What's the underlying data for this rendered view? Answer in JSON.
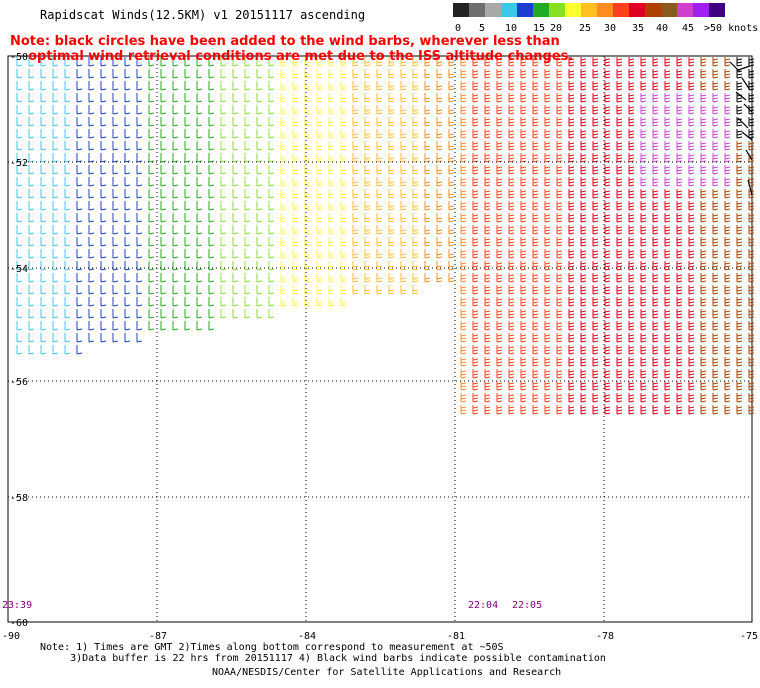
{
  "title": "Rapidscat Winds(12.5KM) v1 20151117 ascending",
  "note_lines": [
    "Note: black circles have been added to the wind barbs, wherever less than",
    "    optimal wind retrieval conditions are met due to the ISS altitude changes."
  ],
  "legend": {
    "colors": [
      "#222222",
      "#6e6e6e",
      "#a8a8a8",
      "#3ac8e8",
      "#1a3fd0",
      "#22aa22",
      "#88e020",
      "#ffff30",
      "#ffc020",
      "#ff8c20",
      "#ff4020",
      "#e00020",
      "#b04000",
      "#8a5a20",
      "#d040d0",
      "#a020f0",
      "#400080"
    ],
    "labels": [
      "0",
      "5",
      "10",
      "15",
      "20",
      "25",
      "30",
      "35",
      "40",
      "45",
      ">50 knots"
    ]
  },
  "lat_labels": [
    "-50",
    "-52",
    "-54",
    "-56",
    "-58",
    "-60"
  ],
  "lon_labels": [
    "-90",
    "-87",
    "-84",
    "-81",
    "-78",
    "-75"
  ],
  "times": [
    "23:39",
    "22:04",
    "22:05"
  ],
  "footer_lines": [
    "Note: 1) Times are GMT 2)Times along bottom correspond to measurement at ~50S",
    "     3)Data buffer is 22 hrs from 20151117 4) Black wind barbs indicate possible contamination"
  ],
  "credit": "NOAA/NESDIS/Center for Satellite Applications and Research"
}
